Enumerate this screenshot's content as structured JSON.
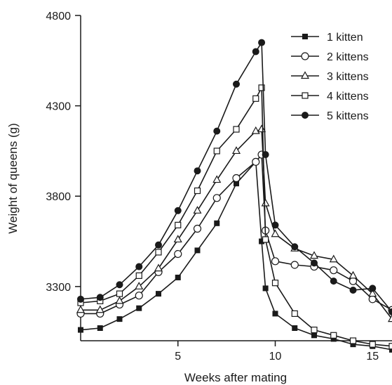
{
  "chart_data": {
    "type": "line",
    "title": "",
    "xlabel": "Weeks after mating",
    "ylabel": "Weight of queens (g)",
    "xlim": [
      0,
      16
    ],
    "ylim": [
      3000,
      4800
    ],
    "xticks": [
      5,
      10,
      15
    ],
    "yticks": [
      3300,
      3800,
      4300,
      4800
    ],
    "grid": false,
    "legend": "top-right",
    "series": [
      {
        "name": "1 kitten",
        "marker": "filled-square",
        "x": [
          0,
          1,
          2,
          3,
          4,
          5,
          6,
          7,
          8,
          9,
          9.3,
          9.5,
          10,
          11,
          12,
          13,
          14,
          15,
          16
        ],
        "y": [
          3060,
          3070,
          3120,
          3180,
          3260,
          3350,
          3500,
          3650,
          3870,
          3990,
          3550,
          3290,
          3150,
          3070,
          3030,
          3010,
          2980,
          2970,
          2950
        ]
      },
      {
        "name": "2 kittens",
        "marker": "open-circle",
        "x": [
          0,
          1,
          2,
          3,
          4,
          5,
          6,
          7,
          8,
          9,
          9.3,
          9.5,
          10,
          11,
          12,
          13,
          14,
          15,
          16
        ],
        "y": [
          3150,
          3150,
          3200,
          3250,
          3380,
          3480,
          3620,
          3790,
          3900,
          3990,
          4030,
          3610,
          3440,
          3420,
          3410,
          3390,
          3330,
          3230,
          3170
        ]
      },
      {
        "name": "3 kittens",
        "marker": "open-triangle",
        "x": [
          0,
          1,
          2,
          3,
          4,
          5,
          6,
          7,
          8,
          9,
          9.3,
          9.5,
          10,
          11,
          12,
          13,
          14,
          15,
          16
        ],
        "y": [
          3170,
          3170,
          3220,
          3300,
          3400,
          3560,
          3720,
          3890,
          4050,
          4160,
          4170,
          3760,
          3590,
          3510,
          3470,
          3450,
          3360,
          3260,
          3120
        ]
      },
      {
        "name": "4 kittens",
        "marker": "open-square",
        "x": [
          0,
          1,
          2,
          3,
          4,
          5,
          6,
          7,
          8,
          9,
          9.3,
          9.5,
          10,
          11,
          12,
          13,
          14,
          15,
          16
        ],
        "y": [
          3210,
          3220,
          3260,
          3360,
          3490,
          3640,
          3830,
          4050,
          4170,
          4340,
          4400,
          3560,
          3320,
          3150,
          3060,
          3030,
          3000,
          2980,
          2970
        ]
      },
      {
        "name": "5 kittens",
        "marker": "filled-circle",
        "x": [
          0,
          1,
          2,
          3,
          4,
          5,
          6,
          7,
          8,
          9,
          9.3,
          9.5,
          10,
          11,
          12,
          13,
          14,
          15,
          16
        ],
        "y": [
          3230,
          3240,
          3310,
          3410,
          3530,
          3720,
          3940,
          4160,
          4420,
          4600,
          4650,
          4030,
          3640,
          3520,
          3430,
          3330,
          3280,
          3290,
          3160
        ]
      }
    ]
  }
}
